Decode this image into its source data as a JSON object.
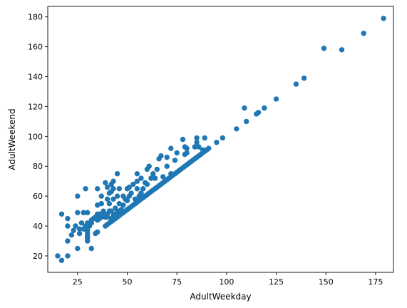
{
  "chart_data": {
    "type": "scatter",
    "title": "",
    "xlabel": "AdultWeekday",
    "ylabel": "AdultWeekend",
    "xlim": [
      10,
      184
    ],
    "ylim": [
      9,
      187
    ],
    "xticks": [
      25,
      50,
      75,
      100,
      125,
      150,
      175
    ],
    "yticks": [
      20,
      40,
      60,
      80,
      100,
      120,
      140,
      160,
      180
    ],
    "grid": false,
    "legend": false,
    "marker_color": "#1f77b4",
    "series": [
      {
        "points": [
          [
            15,
            20
          ],
          [
            17,
            17
          ],
          [
            17,
            48
          ],
          [
            20,
            20
          ],
          [
            20,
            30
          ],
          [
            20,
            40
          ],
          [
            20,
            45
          ],
          [
            22,
            34
          ],
          [
            23,
            37
          ],
          [
            24,
            40
          ],
          [
            25,
            25
          ],
          [
            25,
            49
          ],
          [
            25,
            60
          ],
          [
            26,
            35
          ],
          [
            26,
            38
          ],
          [
            27,
            42
          ],
          [
            28,
            38
          ],
          [
            28,
            49
          ],
          [
            29,
            38
          ],
          [
            29,
            40
          ],
          [
            29,
            65
          ],
          [
            30,
            30
          ],
          [
            30,
            32
          ],
          [
            30,
            33
          ],
          [
            30,
            35
          ],
          [
            30,
            37
          ],
          [
            30,
            39
          ],
          [
            30,
            42
          ],
          [
            30,
            49
          ],
          [
            31,
            40
          ],
          [
            32,
            25
          ],
          [
            32,
            42
          ],
          [
            32,
            44
          ],
          [
            33,
            45
          ],
          [
            34,
            35
          ],
          [
            34,
            46
          ],
          [
            35,
            36
          ],
          [
            35,
            44
          ],
          [
            35,
            46
          ],
          [
            35,
            48
          ],
          [
            35,
            54
          ],
          [
            35,
            65
          ],
          [
            36,
            45
          ],
          [
            36,
            48
          ],
          [
            37,
            46
          ],
          [
            37,
            55
          ],
          [
            37,
            60
          ],
          [
            38,
            47
          ],
          [
            38,
            50
          ],
          [
            39,
            40
          ],
          [
            39,
            46
          ],
          [
            39,
            69
          ],
          [
            40,
            41
          ],
          [
            40,
            46
          ],
          [
            40,
            48
          ],
          [
            40,
            58
          ],
          [
            40,
            66
          ],
          [
            41,
            42
          ],
          [
            41,
            50
          ],
          [
            41,
            55
          ],
          [
            41,
            62
          ],
          [
            42,
            43
          ],
          [
            42,
            45
          ],
          [
            42,
            50
          ],
          [
            42,
            63
          ],
          [
            42,
            68
          ],
          [
            43,
            44
          ],
          [
            43,
            47
          ],
          [
            43,
            58
          ],
          [
            43,
            65
          ],
          [
            43,
            70
          ],
          [
            44,
            45
          ],
          [
            44,
            48
          ],
          [
            44,
            52
          ],
          [
            45,
            46
          ],
          [
            45,
            50
          ],
          [
            45,
            60
          ],
          [
            45,
            75
          ],
          [
            46,
            47
          ],
          [
            46,
            55
          ],
          [
            46,
            65
          ],
          [
            47,
            48
          ],
          [
            47,
            51
          ],
          [
            48,
            49
          ],
          [
            48,
            54
          ],
          [
            48,
            60
          ],
          [
            49,
            50
          ],
          [
            49,
            58
          ],
          [
            50,
            51
          ],
          [
            50,
            57
          ],
          [
            50,
            65
          ],
          [
            51,
            52
          ],
          [
            51,
            60
          ],
          [
            51,
            66
          ],
          [
            52,
            53
          ],
          [
            52,
            62
          ],
          [
            53,
            54
          ],
          [
            53,
            68
          ],
          [
            54,
            55
          ],
          [
            54,
            58
          ],
          [
            55,
            56
          ],
          [
            55,
            65
          ],
          [
            55,
            70
          ],
          [
            55,
            75
          ],
          [
            56,
            57
          ],
          [
            56,
            60
          ],
          [
            57,
            58
          ],
          [
            57,
            62
          ],
          [
            57,
            72
          ],
          [
            58,
            59
          ],
          [
            58,
            65
          ],
          [
            59,
            60
          ],
          [
            59,
            69
          ],
          [
            60,
            61
          ],
          [
            60,
            68
          ],
          [
            60,
            78
          ],
          [
            61,
            62
          ],
          [
            61,
            80
          ],
          [
            62,
            63
          ],
          [
            62,
            72
          ],
          [
            63,
            64
          ],
          [
            63,
            75
          ],
          [
            64,
            65
          ],
          [
            64,
            72
          ],
          [
            65,
            66
          ],
          [
            65,
            78
          ],
          [
            66,
            67
          ],
          [
            66,
            85
          ],
          [
            67,
            68
          ],
          [
            67,
            87
          ],
          [
            68,
            69
          ],
          [
            68,
            73
          ],
          [
            69,
            70
          ],
          [
            70,
            71
          ],
          [
            70,
            80
          ],
          [
            70,
            86
          ],
          [
            71,
            72
          ],
          [
            72,
            73
          ],
          [
            72,
            75
          ],
          [
            72,
            92
          ],
          [
            73,
            74
          ],
          [
            74,
            75
          ],
          [
            74,
            84
          ],
          [
            75,
            76
          ],
          [
            75,
            89
          ],
          [
            76,
            77
          ],
          [
            77,
            78
          ],
          [
            78,
            79
          ],
          [
            78,
            98
          ],
          [
            79,
            80
          ],
          [
            79,
            88
          ],
          [
            79,
            93
          ],
          [
            80,
            81
          ],
          [
            80,
            89
          ],
          [
            80,
            92
          ],
          [
            81,
            82
          ],
          [
            82,
            83
          ],
          [
            83,
            84
          ],
          [
            84,
            85
          ],
          [
            84,
            93
          ],
          [
            85,
            86
          ],
          [
            85,
            96
          ],
          [
            85,
            99
          ],
          [
            86,
            87
          ],
          [
            86,
            93
          ],
          [
            87,
            88
          ],
          [
            88,
            89
          ],
          [
            88,
            91
          ],
          [
            89,
            90
          ],
          [
            89,
            99
          ],
          [
            90,
            91
          ],
          [
            91,
            92
          ],
          [
            95,
            96
          ],
          [
            98,
            99
          ],
          [
            105,
            105
          ],
          [
            109,
            119
          ],
          [
            110,
            110
          ],
          [
            115,
            115
          ],
          [
            116,
            116
          ],
          [
            119,
            119
          ],
          [
            125,
            125
          ],
          [
            135,
            135
          ],
          [
            139,
            139
          ],
          [
            149,
            159
          ],
          [
            158,
            158
          ],
          [
            169,
            169
          ],
          [
            179,
            179
          ]
        ]
      }
    ]
  }
}
